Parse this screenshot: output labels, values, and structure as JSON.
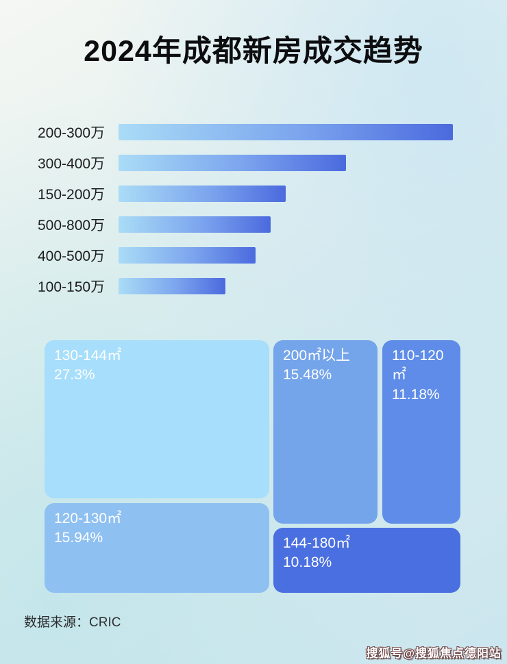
{
  "page": {
    "title": "2024年成都新房成交趋势",
    "source_label": "数据来源：CRIC",
    "watermark": "搜狐号@搜狐焦点德阳站"
  },
  "colors": {
    "bar_gradient_css": "linear-gradient(90deg, #aadcf6 0%, #7ba4ee 55%, #4b6ade 100%)",
    "title_color": "#0d0d0f",
    "background_tint": "#d6eaee"
  },
  "chart_data": [
    {
      "type": "bar",
      "orientation": "horizontal",
      "categories": [
        "200-300万",
        "300-400万",
        "150-200万",
        "500-800万",
        "400-500万",
        "100-150万"
      ],
      "values_relative_pct": [
        100,
        68,
        50,
        45.5,
        41,
        32
      ],
      "value_labels_shown": false,
      "note": "bar lengths estimated as percent of longest bar; no numeric axis shown",
      "bar_color_start": "#aadcf6",
      "bar_color_end": "#4b6ade"
    },
    {
      "type": "treemap",
      "items": [
        {
          "label": "130-144㎡",
          "pct_label": "27.3%",
          "value_pct": 27.3,
          "color": "#a6defb"
        },
        {
          "label": "120-130㎡",
          "pct_label": "15.94%",
          "value_pct": 15.94,
          "color": "#8fc0f2"
        },
        {
          "label": "200㎡以上",
          "pct_label": "15.48%",
          "value_pct": 15.48,
          "color": "#74a4ea"
        },
        {
          "label": "110-120㎡",
          "pct_label": "11.18%",
          "value_pct": 11.18,
          "color": "#5e8ce8"
        },
        {
          "label": "144-180㎡",
          "pct_label": "10.18%",
          "value_pct": 10.18,
          "color": "#4a6fe0"
        }
      ]
    }
  ]
}
